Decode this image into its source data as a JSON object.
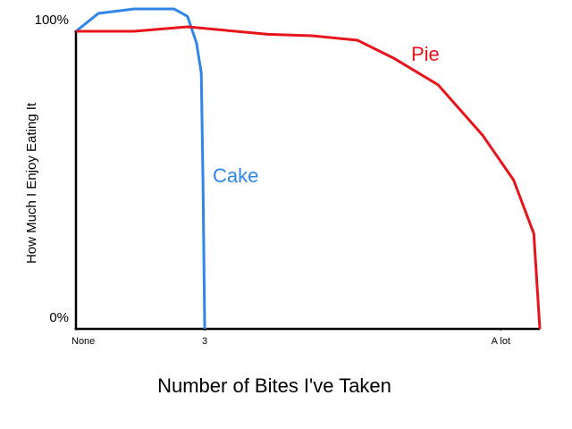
{
  "chart_data": {
    "type": "line",
    "xlabel": "Number of Bites I've Taken",
    "ylabel": "How Much I Enjoy Eating It",
    "xlim": [
      0,
      10.81
    ],
    "ylim": [
      0,
      110
    ],
    "xticks": [
      {
        "value": 0,
        "label": "None"
      },
      3,
      {
        "value": 9.9,
        "label": "A lot"
      }
    ],
    "yticks": [
      {
        "value": 0,
        "label": "0%"
      },
      {
        "value": 100,
        "label": "100%"
      }
    ],
    "series": [
      {
        "name": "Cake",
        "color": "#2f86e8",
        "x": [
          0,
          0.52,
          1.35,
          2.29,
          2.6,
          2.81,
          2.92,
          2.96,
          3
        ],
        "values": [
          100,
          106,
          107.5,
          107.5,
          105,
          96,
          86,
          50,
          0
        ]
      },
      {
        "name": "Pie",
        "color": "#e8141c",
        "x": [
          0,
          1.35,
          2.6,
          4.48,
          5.5,
          6.56,
          7.4,
          8.44,
          9.48,
          10.2,
          10.67,
          10.81
        ],
        "values": [
          100,
          100,
          101.5,
          99,
          98.5,
          97,
          91,
          82,
          65,
          50,
          32,
          0
        ]
      }
    ]
  }
}
